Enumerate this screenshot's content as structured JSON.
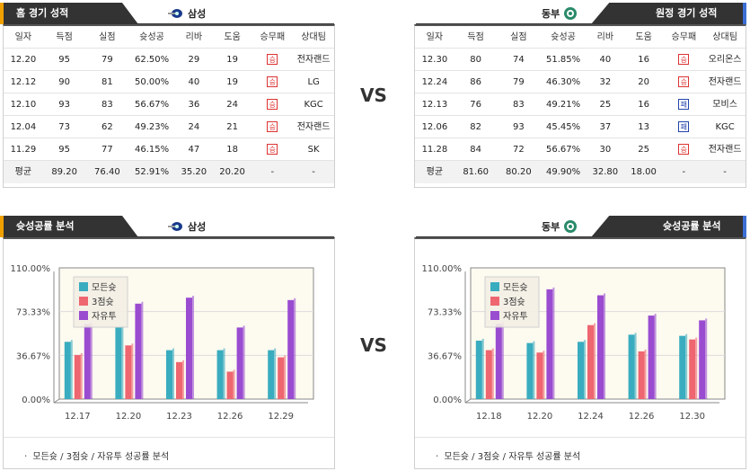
{
  "colors": {
    "win": "#dd3333",
    "loss": "#2244aa",
    "all": "#3aacbf",
    "three": "#ee6670",
    "free": "#9a4cd0",
    "accent_home": "#f0a000",
    "accent_away": "#3b6fd4"
  },
  "vs_label": "VS",
  "home_record": {
    "title": "홈 경기 성적",
    "team": "삼성",
    "team_icon": "samsung-logo-icon",
    "headers": [
      "일자",
      "득점",
      "실점",
      "슛성공",
      "리바",
      "도움",
      "승무패",
      "상대팀"
    ],
    "rows": [
      {
        "date": "12.20",
        "pts": "95",
        "opp": "79",
        "fg": "62.50%",
        "reb": "29",
        "ast": "19",
        "result": "승",
        "vs_team": "전자랜드"
      },
      {
        "date": "12.12",
        "pts": "90",
        "opp": "81",
        "fg": "50.00%",
        "reb": "40",
        "ast": "19",
        "result": "승",
        "vs_team": "LG"
      },
      {
        "date": "12.10",
        "pts": "93",
        "opp": "83",
        "fg": "56.67%",
        "reb": "36",
        "ast": "24",
        "result": "승",
        "vs_team": "KGC"
      },
      {
        "date": "12.04",
        "pts": "73",
        "opp": "62",
        "fg": "49.23%",
        "reb": "24",
        "ast": "21",
        "result": "승",
        "vs_team": "전자랜드"
      },
      {
        "date": "11.29",
        "pts": "95",
        "opp": "77",
        "fg": "46.15%",
        "reb": "47",
        "ast": "18",
        "result": "승",
        "vs_team": "SK"
      }
    ],
    "avg": {
      "label": "평균",
      "pts": "89.20",
      "opp": "76.40",
      "fg": "52.91%",
      "reb": "35.20",
      "ast": "20.20",
      "result": "-",
      "vs_team": "-"
    }
  },
  "away_record": {
    "title": "원정 경기 성적",
    "team": "동부",
    "team_icon": "dongbu-logo-icon",
    "headers": [
      "일자",
      "득점",
      "실점",
      "슛성공",
      "리바",
      "도움",
      "승무패",
      "상대팀"
    ],
    "rows": [
      {
        "date": "12.30",
        "pts": "80",
        "opp": "74",
        "fg": "51.85%",
        "reb": "40",
        "ast": "16",
        "result": "승",
        "vs_team": "오리온스"
      },
      {
        "date": "12.24",
        "pts": "86",
        "opp": "79",
        "fg": "46.30%",
        "reb": "32",
        "ast": "20",
        "result": "승",
        "vs_team": "전자랜드"
      },
      {
        "date": "12.13",
        "pts": "76",
        "opp": "83",
        "fg": "49.21%",
        "reb": "25",
        "ast": "16",
        "result": "패",
        "vs_team": "모비스"
      },
      {
        "date": "12.06",
        "pts": "82",
        "opp": "93",
        "fg": "45.45%",
        "reb": "37",
        "ast": "13",
        "result": "패",
        "vs_team": "KGC"
      },
      {
        "date": "11.28",
        "pts": "84",
        "opp": "72",
        "fg": "56.67%",
        "reb": "30",
        "ast": "25",
        "result": "승",
        "vs_team": "전자랜드"
      }
    ],
    "avg": {
      "label": "평균",
      "pts": "81.60",
      "opp": "80.20",
      "fg": "49.90%",
      "reb": "32.80",
      "ast": "18.00",
      "result": "-",
      "vs_team": "-"
    }
  },
  "home_chart_section": {
    "title": "슛성공률 분석",
    "team": "삼성",
    "footer": "ㆍ 모든슛 / 3점슛 / 자유투 성공률 분석"
  },
  "away_chart_section": {
    "title": "슛성공률 분석",
    "team": "동부",
    "footer": "ㆍ 모든슛 / 3점슛 / 자유투 성공률 분석"
  },
  "chart_data": [
    {
      "type": "bar",
      "categories": [
        "12.17",
        "12.20",
        "12.23",
        "12.26",
        "12.29"
      ],
      "ylim": [
        0,
        110
      ],
      "yticks": [
        "0.00%",
        "36.67%",
        "73.33%",
        "110.00%"
      ],
      "legend_position": "top-left",
      "series": [
        {
          "name": "모든슛",
          "values": [
            48,
            60,
            41,
            41,
            41
          ]
        },
        {
          "name": "3점슛",
          "values": [
            37,
            45,
            31,
            23,
            35
          ]
        },
        {
          "name": "자유투",
          "values": [
            63,
            80,
            85,
            60,
            83
          ]
        }
      ]
    },
    {
      "type": "bar",
      "categories": [
        "12.18",
        "12.20",
        "12.24",
        "12.26",
        "12.30"
      ],
      "ylim": [
        0,
        110
      ],
      "yticks": [
        "0.00%",
        "36.67%",
        "73.33%",
        "110.00%"
      ],
      "legend_position": "top-left",
      "series": [
        {
          "name": "모든슛",
          "values": [
            49,
            47,
            48,
            54,
            53
          ]
        },
        {
          "name": "3점슛",
          "values": [
            41,
            39,
            62,
            40,
            50
          ]
        },
        {
          "name": "자유투",
          "values": [
            63,
            92,
            87,
            70,
            66
          ]
        }
      ]
    }
  ]
}
